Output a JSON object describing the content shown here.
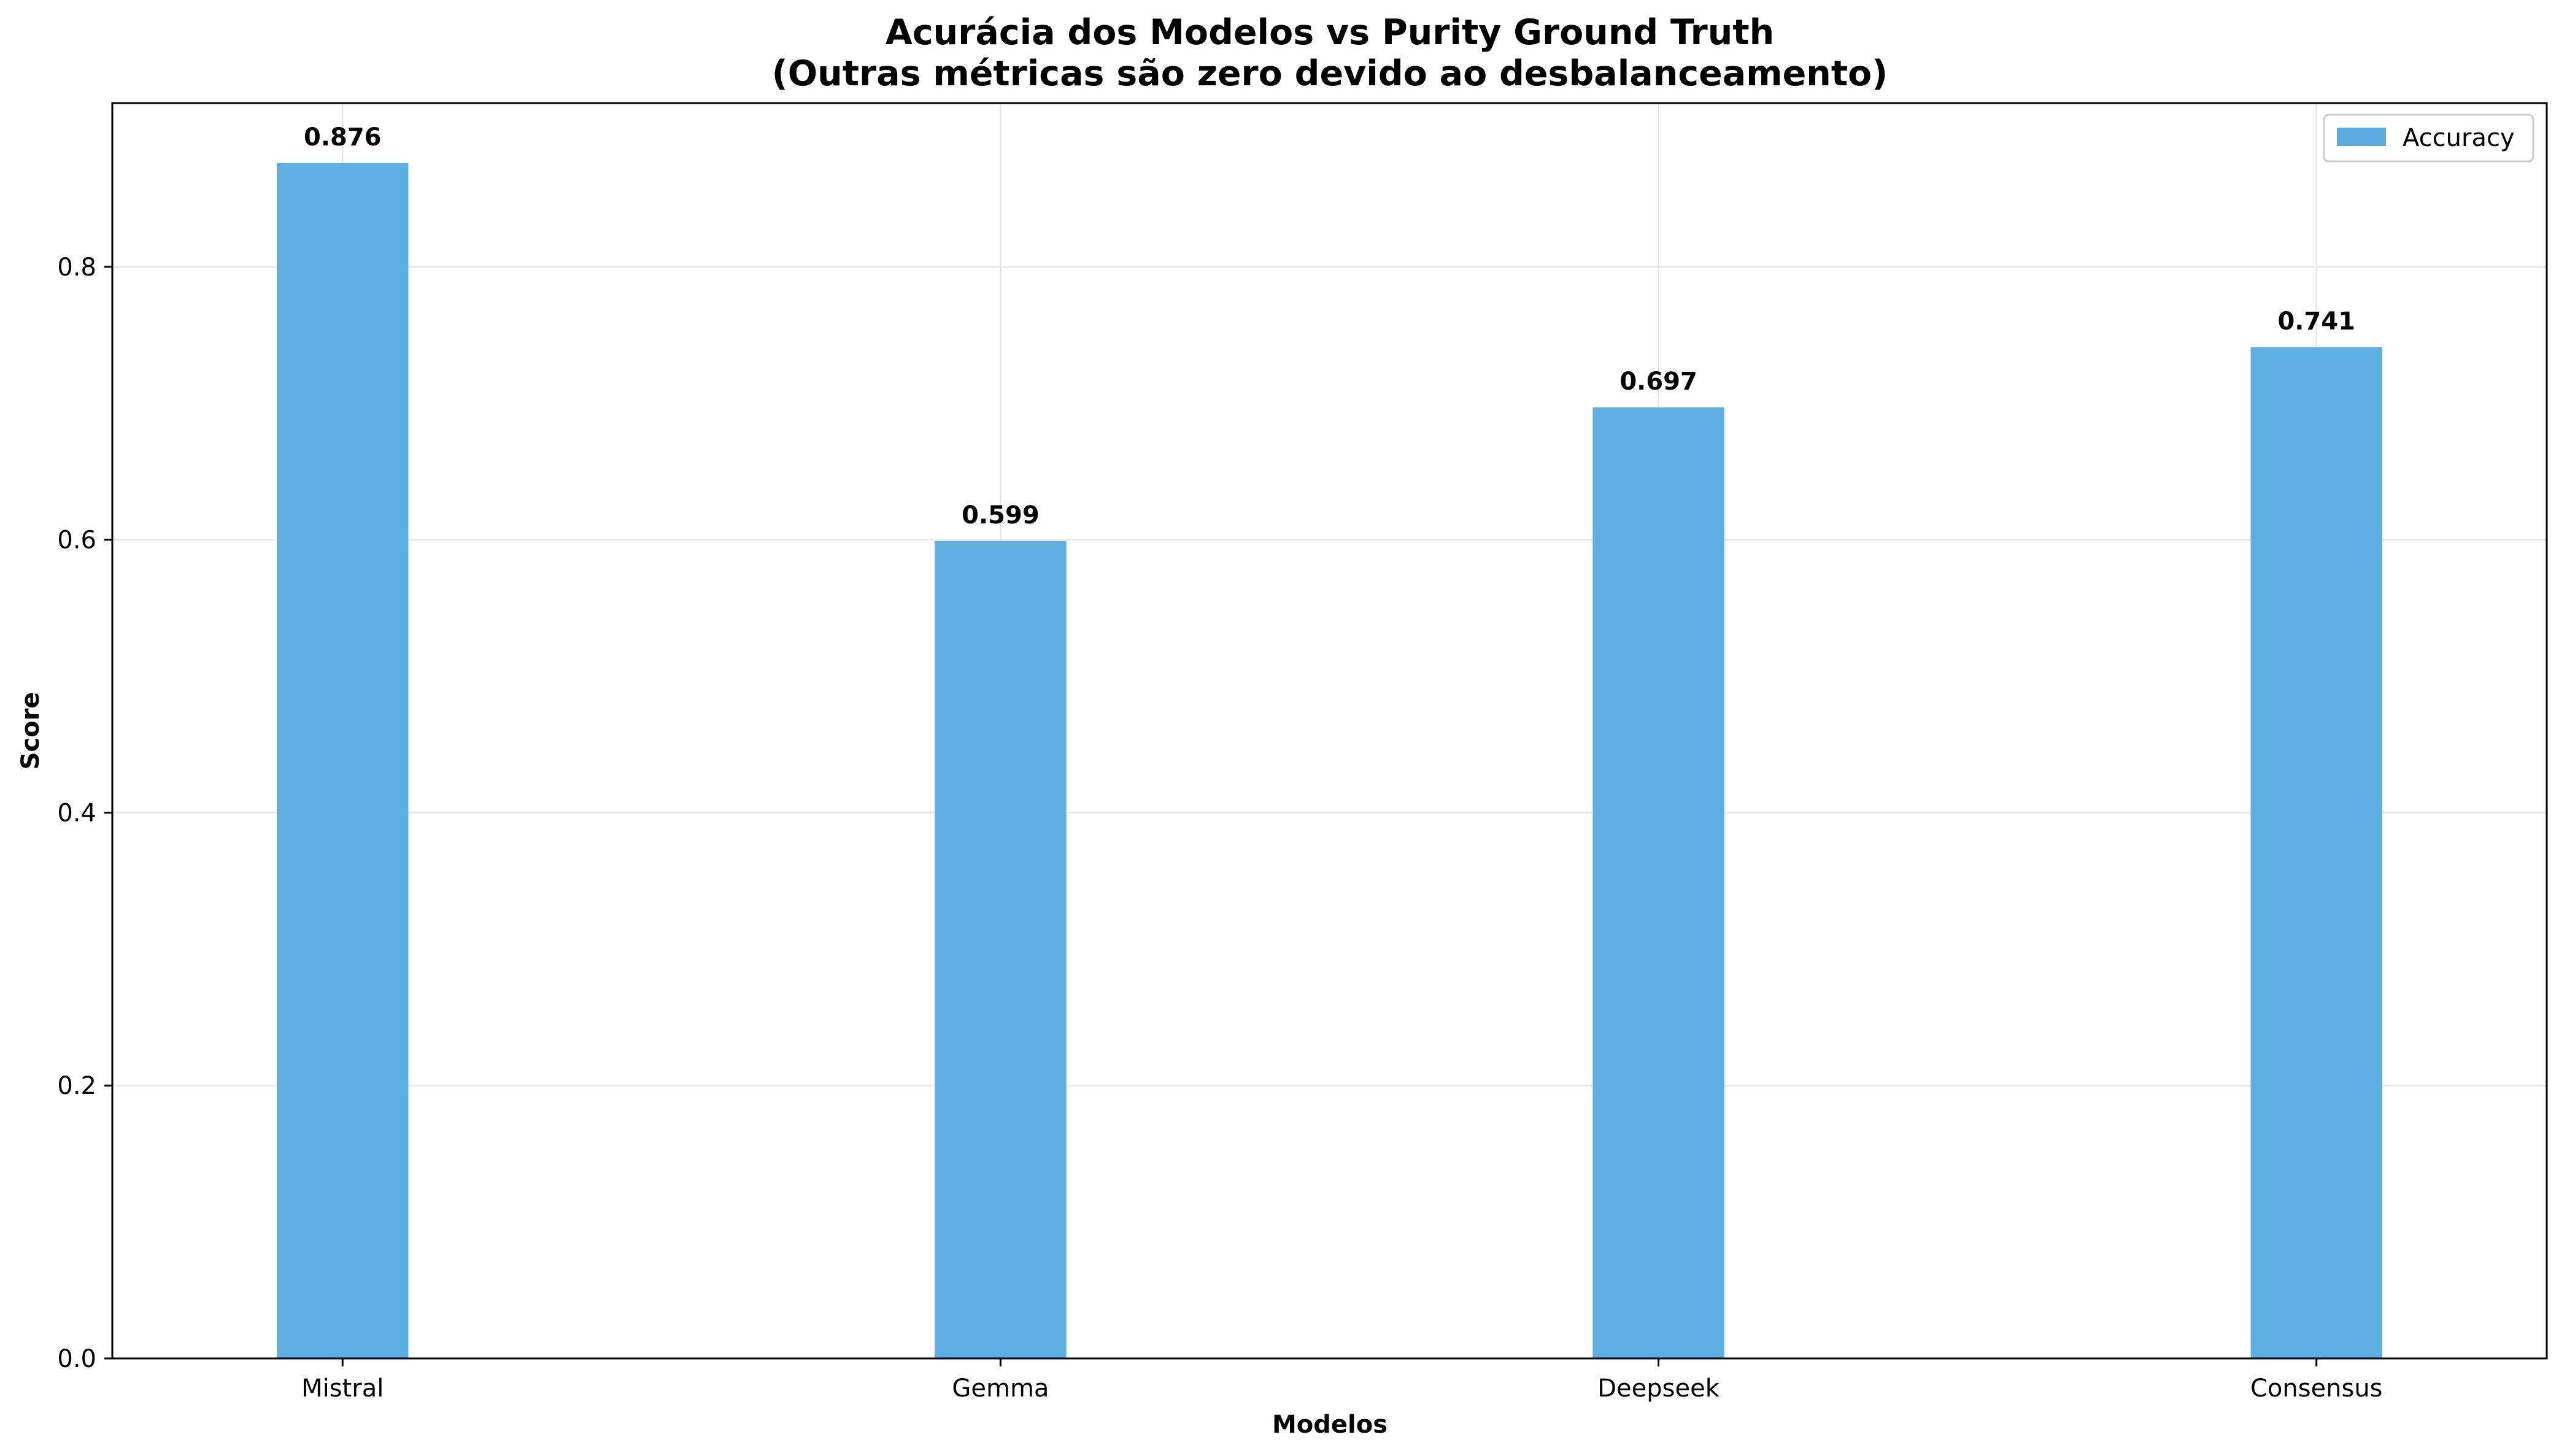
{
  "chart_data": {
    "type": "bar",
    "title_lines": [
      "Acurácia dos Modelos vs Purity Ground Truth",
      "(Outras métricas são zero devido ao desbalanceamento)"
    ],
    "xlabel": "Modelos",
    "ylabel": "Score",
    "categories": [
      "Mistral",
      "Gemma",
      "Deepseek",
      "Consensus"
    ],
    "series": [
      {
        "name": "Accuracy",
        "color": "#5DADE2",
        "values": [
          0.876,
          0.599,
          0.697,
          0.741
        ],
        "labels": [
          "0.876",
          "0.599",
          "0.697",
          "0.741"
        ]
      }
    ],
    "ylim": [
      0,
      0.92
    ],
    "yticks": [
      0.0,
      0.2,
      0.4,
      0.6,
      0.8
    ],
    "ytick_labels": [
      "0.0",
      "0.2",
      "0.4",
      "0.6",
      "0.8"
    ],
    "grid": true,
    "legend_position": "top-right"
  }
}
